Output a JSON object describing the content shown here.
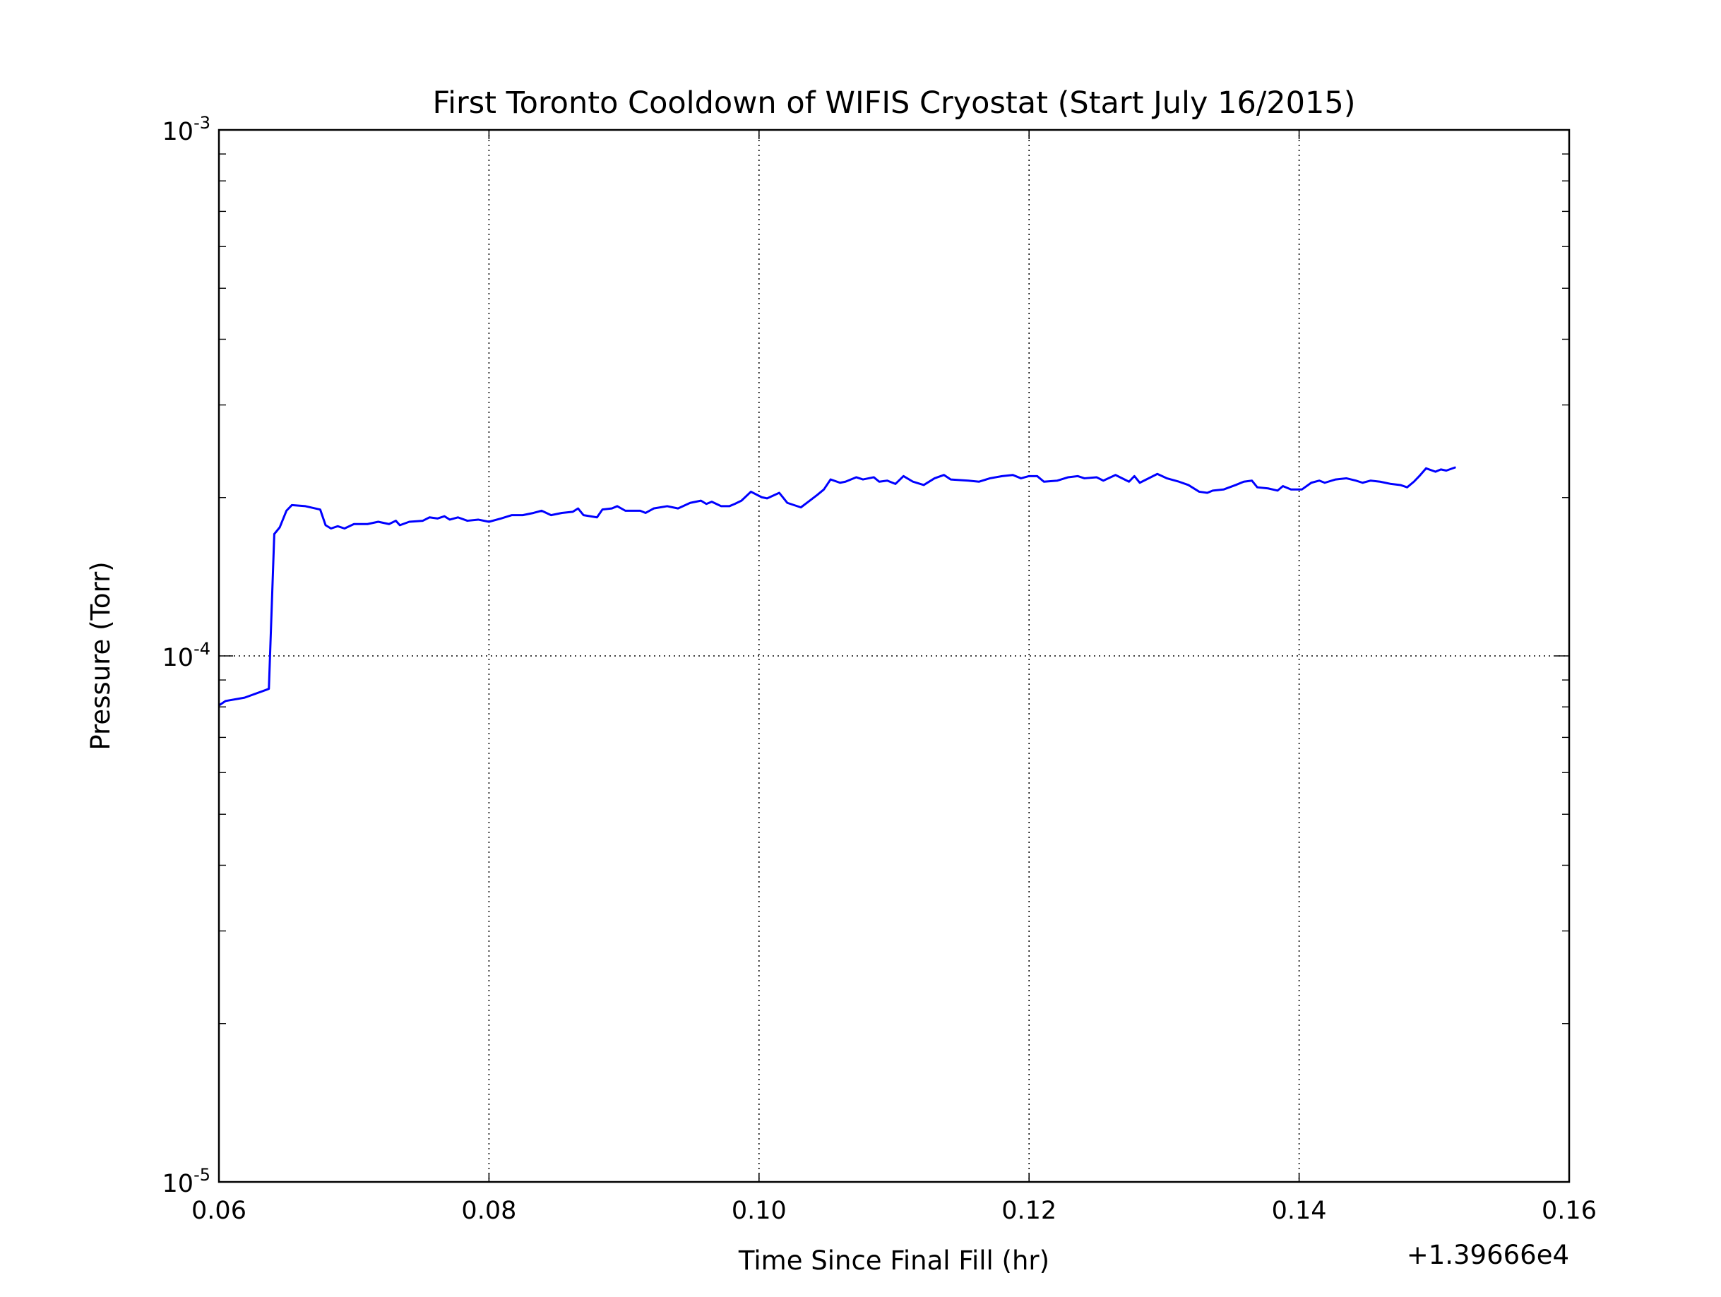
{
  "chart_data": {
    "type": "line",
    "title": "First Toronto Cooldown of WIFIS Cryostat (Start July 16/2015)",
    "x_label": "Time Since Final Fill (hr)",
    "y_label": "Pressure (Torr)",
    "x_offset_label": "+1.39666e4",
    "y_scale": "log",
    "grid": true,
    "color": "#0000ff",
    "xlim": [
      0.06,
      0.16
    ],
    "xticks": [
      0.06,
      0.08,
      {
        "value": 0.1,
        "label": "0.10"
      },
      0.12,
      0.14,
      0.16
    ],
    "ylim": [
      1e-05,
      0.001
    ],
    "yticks": [
      {
        "value": 1e-05,
        "label": "10-5"
      },
      {
        "value": 0.0001,
        "label": "10-4"
      },
      {
        "value": 0.001,
        "label": "10-3"
      }
    ],
    "yticks_minor": [
      2e-05,
      3e-05,
      4e-05,
      5e-05,
      6e-05,
      7e-05,
      8e-05,
      9e-05,
      0.0002,
      0.0003,
      0.0004,
      0.0005,
      0.0006,
      0.0007,
      0.0008,
      0.0009
    ],
    "x": [
      0.06,
      0.0605,
      0.0619,
      0.0635,
      0.0637,
      0.0641,
      0.0645,
      0.065,
      0.0654,
      0.0664,
      0.0675,
      0.0679,
      0.0683,
      0.0688,
      0.0693,
      0.07,
      0.071,
      0.0718,
      0.0726,
      0.0731,
      0.0734,
      0.0741,
      0.0751,
      0.0756,
      0.0762,
      0.0767,
      0.0771,
      0.0777,
      0.0784,
      0.0792,
      0.08,
      0.0809,
      0.0817,
      0.0825,
      0.0833,
      0.0839,
      0.0846,
      0.0854,
      0.0862,
      0.0866,
      0.087,
      0.088,
      0.0884,
      0.0891,
      0.0895,
      0.0901,
      0.0912,
      0.0916,
      0.0922,
      0.0932,
      0.094,
      0.0949,
      0.0957,
      0.0961,
      0.0965,
      0.0972,
      0.0978,
      0.0982,
      0.0987,
      0.0994,
      0.1002,
      0.1006,
      0.1015,
      0.1021,
      0.1031,
      0.1043,
      0.1048,
      0.1053,
      0.106,
      0.1064,
      0.1072,
      0.1077,
      0.1085,
      0.1089,
      0.1095,
      0.1101,
      0.1107,
      0.1114,
      0.1122,
      0.113,
      0.1137,
      0.1142,
      0.1155,
      0.1163,
      0.1171,
      0.118,
      0.1188,
      0.1194,
      0.12,
      0.1206,
      0.1211,
      0.1221,
      0.1229,
      0.1236,
      0.1241,
      0.125,
      0.1255,
      0.1264,
      0.1274,
      0.1278,
      0.1282,
      0.1295,
      0.1302,
      0.1311,
      0.1318,
      0.1326,
      0.1332,
      0.1336,
      0.1344,
      0.1353,
      0.1359,
      0.1365,
      0.1369,
      0.1377,
      0.1384,
      0.1388,
      0.1394,
      0.1402,
      0.1409,
      0.1415,
      0.1419,
      0.1427,
      0.1435,
      0.1442,
      0.1447,
      0.1453,
      0.146,
      0.1468,
      0.1475,
      0.148,
      0.1485,
      0.1489,
      0.1494,
      0.1501,
      0.1505,
      0.1509,
      0.1516
    ],
    "series": [
      {
        "color": "#0000ff",
        "values": [
          8.05e-05,
          8.21e-05,
          8.33e-05,
          8.62e-05,
          8.66e-05,
          0.0001705,
          0.0001755,
          0.0001888,
          0.0001935,
          0.0001926,
          0.0001898,
          0.0001772,
          0.0001747,
          0.0001764,
          0.0001747,
          0.0001781,
          0.0001781,
          0.0001799,
          0.0001781,
          0.0001807,
          0.0001772,
          0.0001799,
          0.0001807,
          0.0001834,
          0.0001825,
          0.0001843,
          0.0001816,
          0.0001834,
          0.0001807,
          0.0001816,
          0.0001799,
          0.0001825,
          0.0001852,
          0.0001852,
          0.000187,
          0.0001888,
          0.0001852,
          0.000187,
          0.0001879,
          0.0001907,
          0.0001852,
          0.0001834,
          0.0001898,
          0.0001907,
          0.0001926,
          0.0001888,
          0.0001888,
          0.000187,
          0.0001907,
          0.0001926,
          0.0001907,
          0.0001954,
          0.0001973,
          0.0001945,
          0.0001964,
          0.0001926,
          0.0001926,
          0.0001945,
          0.0001973,
          0.0002052,
          0.0002003,
          0.0001993,
          0.0002042,
          0.0001954,
          0.0001916,
          0.0002022,
          0.0002072,
          0.0002165,
          0.0002134,
          0.0002144,
          0.0002186,
          0.0002165,
          0.0002186,
          0.0002144,
          0.0002154,
          0.0002123,
          0.0002197,
          0.0002144,
          0.0002113,
          0.0002176,
          0.0002208,
          0.0002165,
          0.0002154,
          0.0002144,
          0.0002176,
          0.0002197,
          0.0002208,
          0.0002176,
          0.0002197,
          0.0002197,
          0.0002144,
          0.0002154,
          0.0002186,
          0.0002197,
          0.0002176,
          0.0002186,
          0.0002154,
          0.0002208,
          0.0002144,
          0.0002197,
          0.0002134,
          0.0002218,
          0.0002176,
          0.0002144,
          0.0002113,
          0.0002052,
          0.0002042,
          0.0002062,
          0.0002072,
          0.0002113,
          0.0002144,
          0.0002154,
          0.0002092,
          0.0002082,
          0.0002062,
          0.0002103,
          0.0002072,
          0.0002072,
          0.0002134,
          0.0002154,
          0.0002134,
          0.0002165,
          0.0002176,
          0.0002154,
          0.0002134,
          0.0002154,
          0.0002144,
          0.0002123,
          0.0002113,
          0.0002092,
          0.0002144,
          0.0002197,
          0.0002273,
          0.000224,
          0.0002262,
          0.0002251,
          0.0002284
        ]
      }
    ]
  }
}
